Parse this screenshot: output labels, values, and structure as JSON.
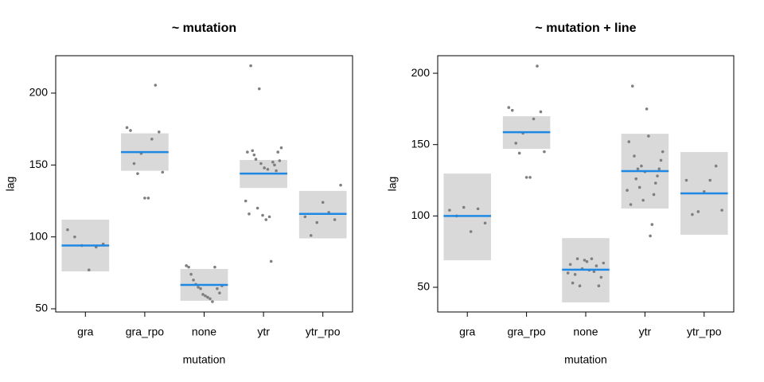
{
  "chart_data": [
    {
      "type": "strip",
      "title": "~ mutation",
      "x_label": "mutation",
      "y_label": "lag",
      "categories": [
        "gra",
        "gra_rpo",
        "none",
        "ytr",
        "ytr_rpo"
      ],
      "values": [
        94,
        159,
        66.6,
        144,
        116
      ],
      "lower": [
        76,
        146,
        55.6,
        134,
        99
      ],
      "upper": [
        112,
        172,
        77.7,
        153.5,
        132
      ],
      "points": [
        [
          105,
          100,
          94,
          77,
          93,
          95
        ],
        [
          176,
          174,
          151,
          144,
          158,
          127,
          127,
          168,
          205.5,
          173,
          145
        ],
        [
          80,
          79,
          74,
          70,
          67,
          65,
          64,
          60,
          59,
          58,
          57,
          55,
          79,
          64,
          61,
          66
        ],
        [
          125,
          159,
          116,
          219,
          160,
          157,
          154,
          120,
          203,
          151,
          115,
          148,
          112,
          147,
          114,
          83,
          152,
          150,
          146,
          159,
          153,
          162
        ],
        [
          114,
          101,
          110,
          124,
          117,
          112,
          136
        ]
      ],
      "ylim": [
        47.8,
        226
      ],
      "yticks": [
        50,
        100,
        150,
        200
      ],
      "point_color": "#7f7f7f",
      "band_color": "#d9d9d9",
      "line_color": "#1e88e5"
    },
    {
      "type": "strip",
      "title": "~ mutation + line",
      "x_label": "mutation",
      "y_label": "lag",
      "categories": [
        "gra",
        "gra_rpo",
        "none",
        "ytr",
        "ytr_rpo"
      ],
      "values": [
        100,
        158.7,
        62.3,
        131.4,
        115.8
      ],
      "lower": [
        68.9,
        147,
        39.4,
        105.2,
        86.8
      ],
      "upper": [
        129.7,
        169.9,
        84.5,
        157.6,
        144.8
      ],
      "points": [
        [
          104,
          100,
          106,
          89,
          105,
          95
        ],
        [
          176,
          174,
          151,
          144,
          158,
          127,
          127,
          168,
          205,
          173,
          145
        ],
        [
          60,
          66,
          53,
          59,
          70,
          51,
          63,
          69,
          68,
          62,
          70,
          61,
          65,
          51,
          57,
          67
        ],
        [
          118,
          152,
          108,
          191,
          142,
          126,
          133,
          120,
          135,
          111,
          131,
          175,
          156,
          86,
          94,
          115,
          123,
          128,
          133,
          139,
          145
        ],
        [
          125,
          101,
          103,
          117,
          125,
          135,
          104
        ]
      ],
      "ylim": [
        32.7,
        212.3
      ],
      "yticks": [
        50,
        100,
        150,
        200
      ],
      "point_color": "#7f7f7f",
      "band_color": "#d9d9d9",
      "line_color": "#1e88e5"
    }
  ]
}
